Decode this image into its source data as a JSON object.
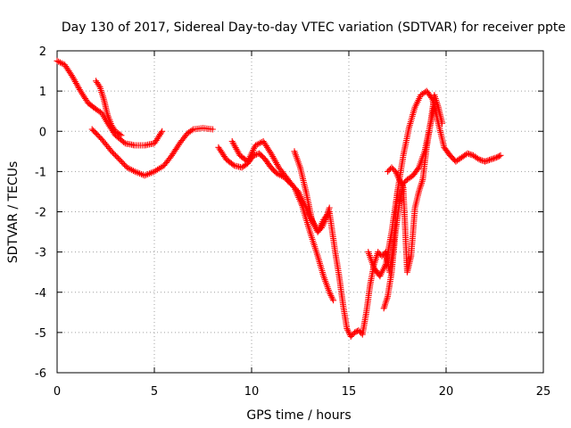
{
  "chart_data": {
    "type": "scatter",
    "title": "Day 130 of 2017, Sidereal Day-to-day VTEC variation (SDTVAR) for receiver ppte",
    "xlabel": "GPS time / hours",
    "ylabel": "SDTVAR / TECUs",
    "xlim": [
      0,
      25
    ],
    "ylim": [
      -6,
      2
    ],
    "xticks": [
      0,
      5,
      10,
      15,
      20,
      25
    ],
    "yticks": [
      -6,
      -5,
      -4,
      -3,
      -2,
      -1,
      0,
      1,
      2
    ],
    "grid": true,
    "marker": "plus",
    "series": [
      {
        "color": "#ff0000",
        "x": [
          0.0,
          0.4,
          0.8,
          1.2,
          1.6,
          2.0,
          2.3,
          2.6,
          3.0,
          3.5,
          4.0,
          4.5,
          5.0,
          5.4
        ],
        "y": [
          1.75,
          1.65,
          1.35,
          1.0,
          0.7,
          0.55,
          0.45,
          0.2,
          -0.1,
          -0.3,
          -0.35,
          -0.35,
          -0.3,
          0.0
        ]
      },
      {
        "color": "#ff0000",
        "x": [
          1.8,
          2.3,
          2.8,
          3.2,
          3.6,
          4.0,
          4.5,
          5.0,
          5.5,
          5.9,
          6.3,
          6.7,
          7.0,
          7.5,
          8.0
        ],
        "y": [
          0.05,
          -0.2,
          -0.5,
          -0.7,
          -0.9,
          -1.0,
          -1.1,
          -1.0,
          -0.85,
          -0.6,
          -0.3,
          -0.05,
          0.05,
          0.08,
          0.05
        ]
      },
      {
        "color": "#ff0000",
        "x": [
          2.0,
          2.2,
          2.4,
          2.6,
          2.8,
          3.0,
          3.3
        ],
        "y": [
          1.25,
          1.1,
          0.8,
          0.4,
          0.15,
          0.0,
          -0.1
        ]
      },
      {
        "color": "#ff0000",
        "x": [
          8.3,
          8.7,
          9.1,
          9.5,
          9.8,
          10.1,
          10.4,
          10.7,
          11.0,
          11.3,
          11.7,
          12.0,
          12.4,
          12.8,
          13.0,
          13.2,
          13.4,
          13.6,
          13.8,
          14.0
        ],
        "y": [
          -0.4,
          -0.7,
          -0.85,
          -0.9,
          -0.8,
          -0.6,
          -0.55,
          -0.7,
          -0.9,
          -1.05,
          -1.15,
          -1.3,
          -1.5,
          -1.9,
          -2.1,
          -2.3,
          -2.5,
          -2.4,
          -2.2,
          -1.9
        ]
      },
      {
        "color": "#ff0000",
        "x": [
          9.0,
          9.4,
          9.8,
          10.2,
          10.6,
          11.0,
          11.4,
          11.8,
          12.2,
          12.6,
          13.0,
          13.4,
          13.7,
          14.0,
          14.2
        ],
        "y": [
          -0.25,
          -0.6,
          -0.75,
          -0.35,
          -0.25,
          -0.55,
          -0.9,
          -1.15,
          -1.4,
          -1.85,
          -2.5,
          -3.1,
          -3.6,
          -4.0,
          -4.2
        ]
      },
      {
        "color": "#ff0000",
        "x": [
          12.2,
          12.5,
          12.8,
          13.1,
          13.4,
          13.7,
          14.0,
          14.3,
          14.5,
          14.7,
          14.9,
          15.1,
          15.3,
          15.5,
          15.7,
          15.9,
          16.1,
          16.3,
          16.5,
          16.7,
          16.9,
          17.1,
          17.3,
          17.5
        ],
        "y": [
          -0.5,
          -0.9,
          -1.5,
          -2.2,
          -2.5,
          -2.2,
          -2.0,
          -3.0,
          -3.6,
          -4.3,
          -4.9,
          -5.1,
          -5.0,
          -4.95,
          -5.05,
          -4.5,
          -3.8,
          -3.3,
          -3.0,
          -3.1,
          -3.0,
          -3.5,
          -2.8,
          -1.5
        ]
      },
      {
        "color": "#ff0000",
        "x": [
          16.0,
          16.3,
          16.6,
          16.9,
          17.2,
          17.5,
          17.8,
          18.1,
          18.4,
          18.7,
          19.0,
          19.3,
          19.6,
          19.9,
          20.2,
          20.5,
          20.8,
          21.1,
          21.4,
          21.7,
          22.0,
          22.3,
          22.6,
          22.8
        ],
        "y": [
          -3.0,
          -3.4,
          -3.6,
          -3.3,
          -2.5,
          -1.5,
          -0.6,
          0.1,
          0.6,
          0.9,
          1.0,
          0.8,
          0.2,
          -0.4,
          -0.6,
          -0.75,
          -0.65,
          -0.55,
          -0.6,
          -0.7,
          -0.75,
          -0.7,
          -0.65,
          -0.6
        ]
      },
      {
        "color": "#ff0000",
        "x": [
          16.8,
          17.0,
          17.2,
          17.4,
          17.6,
          17.8,
          18.0,
          18.3,
          18.6,
          18.9,
          19.2,
          19.4,
          19.6,
          19.8
        ],
        "y": [
          -4.4,
          -4.1,
          -3.5,
          -2.5,
          -1.8,
          -1.3,
          -1.2,
          -1.1,
          -0.9,
          -0.5,
          0.2,
          0.9,
          0.6,
          0.2
        ]
      },
      {
        "color": "#ff0000",
        "x": [
          17.0,
          17.2,
          17.4,
          17.6,
          17.8,
          18.0,
          18.2,
          18.4,
          18.6,
          18.8,
          19.0,
          19.2,
          19.4
        ],
        "y": [
          -1.0,
          -0.9,
          -1.0,
          -1.2,
          -1.4,
          -3.5,
          -3.1,
          -1.9,
          -1.5,
          -1.2,
          -0.4,
          0.2,
          0.6
        ]
      }
    ]
  }
}
